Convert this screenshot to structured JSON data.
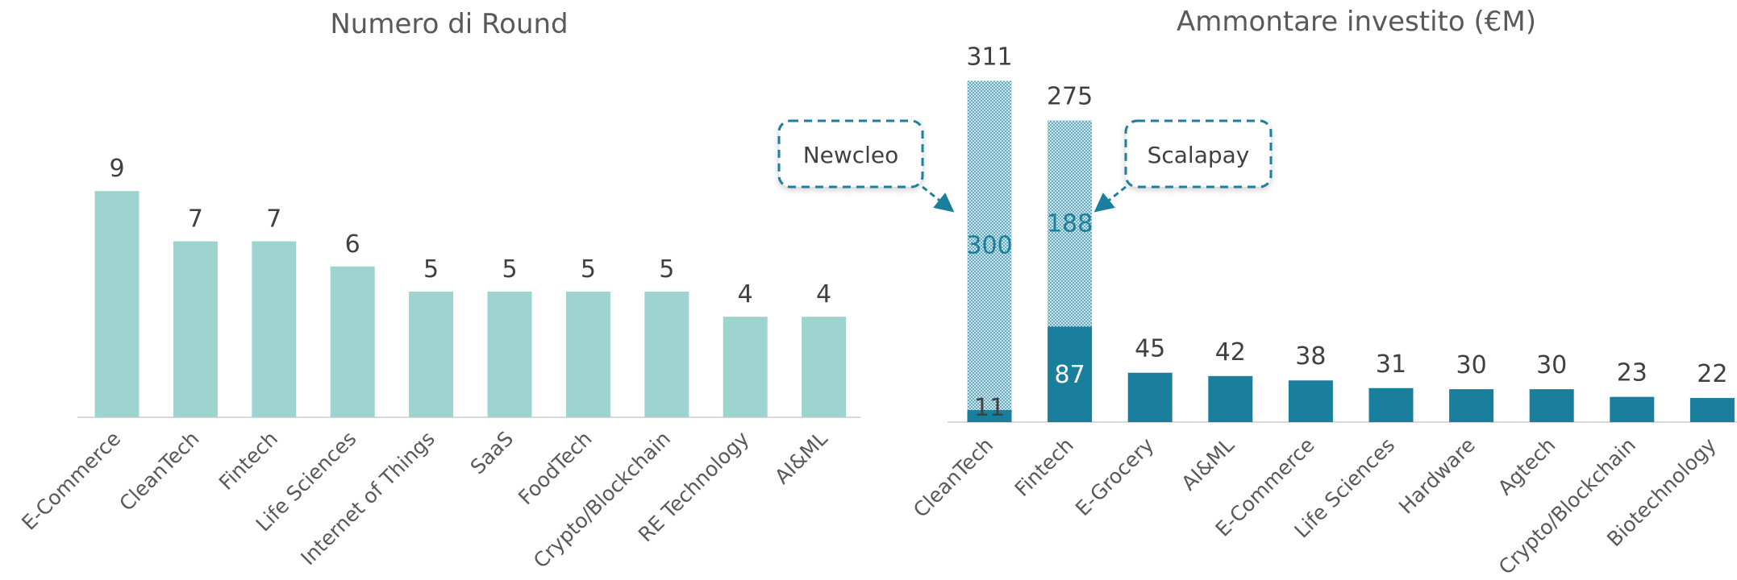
{
  "chart_data": [
    {
      "type": "bar",
      "title": "Numero di Round",
      "xlabel": "",
      "ylabel": "",
      "categories": [
        "E-Commerce",
        "CleanTech",
        "Fintech",
        "Life Sciences",
        "Internet of Things",
        "SaaS",
        "FoodTech",
        "Crypto/Blockchain",
        "RE Technology",
        "AI&ML"
      ],
      "values": [
        9,
        7,
        7,
        6,
        5,
        5,
        5,
        5,
        4,
        4
      ],
      "ylim": [
        0,
        10
      ],
      "grid": false,
      "color": "#9dd4cf"
    },
    {
      "type": "bar",
      "stacked": true,
      "title": "Ammontare investito (€M)",
      "xlabel": "",
      "ylabel": "",
      "categories": [
        "CleanTech",
        "Fintech",
        "E-Grocery",
        "AI&ML",
        "E-Commerce",
        "Life Sciences",
        "Hardware",
        "Agtech",
        "Crypto/Blockchain",
        "Biotechnology"
      ],
      "totals": [
        311,
        275,
        45,
        42,
        38,
        31,
        30,
        30,
        23,
        22
      ],
      "series": [
        {
          "values": [
            11,
            87,
            45,
            42,
            38,
            31,
            30,
            30,
            23,
            22
          ],
          "color": "#1a7f9c"
        },
        {
          "values": [
            300,
            188,
            0,
            0,
            0,
            0,
            0,
            0,
            0,
            0
          ],
          "color": "#1a7f9c",
          "pattern": "dotted"
        }
      ],
      "ylim": [
        0,
        330
      ],
      "grid": false,
      "annotations": [
        {
          "text": "Newcleo",
          "category": "CleanTech"
        },
        {
          "text": "Scalapay",
          "category": "Fintech"
        }
      ]
    }
  ]
}
